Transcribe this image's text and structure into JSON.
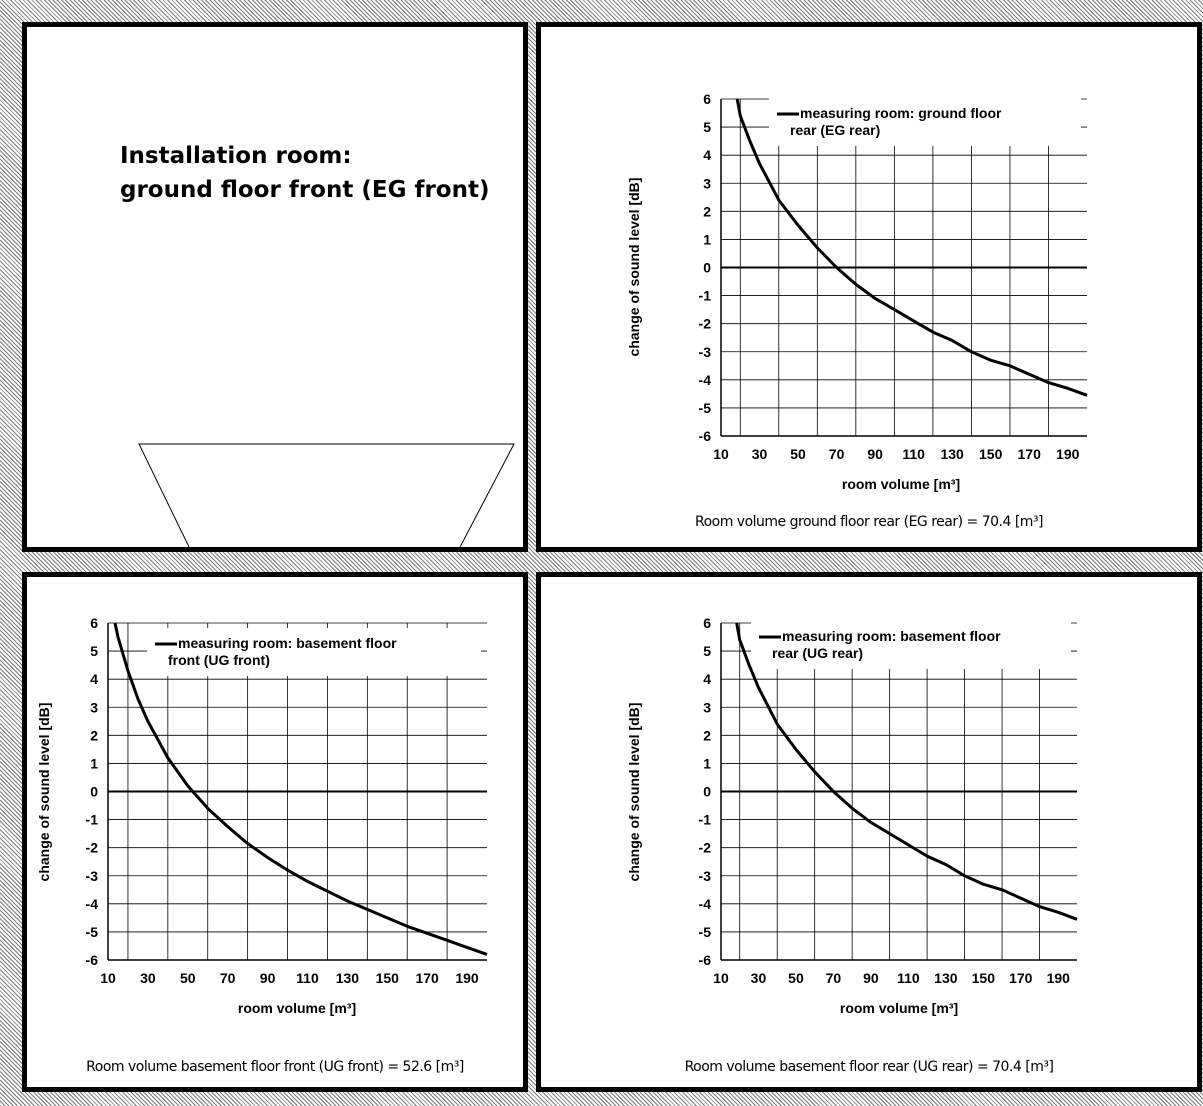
{
  "installation": {
    "title_line1": "Installation room:",
    "title_line2": "ground floor front (EG front)"
  },
  "chart_data": [
    {
      "id": "egrear",
      "type": "line",
      "ylabel": "change of sound level [dB]",
      "xlabel": "room volume [m³]",
      "xlim": [
        10,
        200
      ],
      "ylim": [
        -6,
        6
      ],
      "xticks": [
        10,
        30,
        50,
        70,
        90,
        110,
        130,
        150,
        170,
        190
      ],
      "yticks": [
        6,
        5,
        4,
        3,
        2,
        1,
        0,
        -1,
        -2,
        -3,
        -4,
        -5,
        -6
      ],
      "grid": true,
      "legend_position": "top-right",
      "series": [
        {
          "name": "measuring room: ground floor rear (EG rear)",
          "legend_lines": [
            "measuring room: ground floor",
            "rear (EG rear)"
          ],
          "x": [
            18.4,
            20,
            25,
            30,
            40,
            50,
            60,
            70,
            80,
            90,
            100,
            110,
            120,
            130,
            140,
            150,
            160,
            170,
            180,
            190,
            200
          ],
          "y": [
            6.0,
            5.4,
            4.5,
            3.7,
            2.4,
            1.5,
            0.7,
            0.0,
            -0.6,
            -1.1,
            -1.5,
            -1.9,
            -2.3,
            -2.6,
            -3.0,
            -3.3,
            -3.5,
            -3.8,
            -4.1,
            -4.3,
            -4.55
          ]
        }
      ],
      "caption": "Room volume ground floor rear (EG rear) = 70.4 [m³]"
    },
    {
      "id": "ugfront",
      "type": "line",
      "ylabel": "change of sound level [dB]",
      "xlabel": "room volume [m³]",
      "xlim": [
        10,
        200
      ],
      "ylim": [
        -6,
        6
      ],
      "xticks": [
        10,
        30,
        50,
        70,
        90,
        110,
        130,
        150,
        170,
        190
      ],
      "yticks": [
        6,
        5,
        4,
        3,
        2,
        1,
        0,
        -1,
        -2,
        -3,
        -4,
        -5,
        -6
      ],
      "grid": true,
      "legend_position": "top-right",
      "series": [
        {
          "name": "measuring room: basement floor front (UG front)",
          "legend_lines": [
            "measuring room: basement floor",
            "front (UG front)"
          ],
          "x": [
            13.5,
            15,
            20,
            25,
            30,
            40,
            50,
            60,
            70,
            80,
            90,
            100,
            110,
            120,
            130,
            140,
            150,
            160,
            170,
            180,
            190,
            200
          ],
          "y": [
            6.0,
            5.5,
            4.3,
            3.3,
            2.5,
            1.2,
            0.2,
            -0.6,
            -1.25,
            -1.85,
            -2.35,
            -2.8,
            -3.2,
            -3.55,
            -3.9,
            -4.2,
            -4.5,
            -4.8,
            -5.05,
            -5.3,
            -5.55,
            -5.8
          ]
        }
      ],
      "caption": "Room volume basement floor front (UG front) = 52.6 [m³]"
    },
    {
      "id": "ugrear",
      "type": "line",
      "ylabel": "change of sound level [dB]",
      "xlabel": "room volume [m³]",
      "xlim": [
        10,
        200
      ],
      "ylim": [
        -6,
        6
      ],
      "xticks": [
        10,
        30,
        50,
        70,
        90,
        110,
        130,
        150,
        170,
        190
      ],
      "yticks": [
        6,
        5,
        4,
        3,
        2,
        1,
        0,
        -1,
        -2,
        -3,
        -4,
        -5,
        -6
      ],
      "grid": true,
      "legend_position": "top-right",
      "series": [
        {
          "name": "measuring room: basement floor rear (UG rear)",
          "legend_lines": [
            "measuring room: basement floor",
            "rear (UG rear)"
          ],
          "x": [
            18.4,
            20,
            25,
            30,
            40,
            50,
            60,
            70,
            80,
            90,
            100,
            110,
            120,
            130,
            140,
            150,
            160,
            170,
            180,
            190,
            200
          ],
          "y": [
            6.0,
            5.4,
            4.5,
            3.7,
            2.4,
            1.5,
            0.7,
            0.0,
            -0.6,
            -1.1,
            -1.5,
            -1.9,
            -2.3,
            -2.6,
            -3.0,
            -3.3,
            -3.5,
            -3.8,
            -4.1,
            -4.3,
            -4.55
          ]
        }
      ],
      "caption": "Room volume basement floor rear (UG rear) = 70.4 [m³]"
    }
  ]
}
